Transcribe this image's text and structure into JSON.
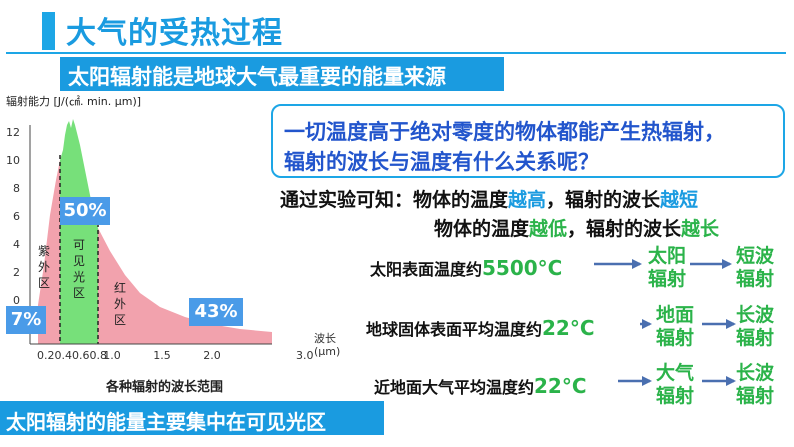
{
  "header": {
    "title": "大气的受热过程",
    "subtitle": "太阳辐射能是地球大气最重要的能量来源"
  },
  "chart": {
    "y_axis_label": "辐射能力 [J/(㎠. min. μm)]",
    "y_ticks": [
      "12",
      "10",
      "8",
      "6",
      "4",
      "2",
      "0"
    ],
    "x_ticks_left": "0.20.40.60.8",
    "x_ticks": [
      "1.0",
      "1.5",
      "2.0",
      "3.0"
    ],
    "x_unit_line1": "波长",
    "x_unit_line2": "(μm)",
    "x_title": "各种辐射的波长范围",
    "band_uv": [
      "紫",
      "外",
      "区"
    ],
    "band_visible": [
      "可",
      "见",
      "光",
      "区"
    ],
    "band_ir": [
      "红",
      "外",
      "区"
    ],
    "pct_uv": "7%",
    "pct_visible": "50%",
    "pct_ir": "43%"
  },
  "question": {
    "line1": "一切温度高于绝对零度的物体都能产生热辐射，",
    "line2": "辐射的波长与温度有什么关系呢？"
  },
  "conclusion": {
    "line1_prefix": "通过实验可知：物体的温度",
    "line1_hi": "越高",
    "line1_mid": "，辐射的波长",
    "line1_short": "越短",
    "line2_prefix": "物体的温度",
    "line2_lo": "越低",
    "line2_mid": "，辐射的波长",
    "line2_long": "越长"
  },
  "rows": [
    {
      "label": "太阳表面温度约",
      "temp": "5500°C",
      "body": [
        "太阳",
        "辐射"
      ],
      "wave": [
        "短波",
        "辐射"
      ]
    },
    {
      "label": "地球固体表面平均温度约",
      "temp": "22°C",
      "body": [
        "地面",
        "辐射"
      ],
      "wave": [
        "长波",
        "辐射"
      ]
    },
    {
      "label": "近地面大气平均温度约",
      "temp": "22°C",
      "body": [
        "大气",
        "辐射"
      ],
      "wave": [
        "长波",
        "辐射"
      ]
    }
  ],
  "footer": {
    "banner": "太阳辐射的能量主要集中在可见光区"
  },
  "colors": {
    "brand_blue": "#1a9be0",
    "green": "#2bb34a",
    "arrow": "#4a6fb0",
    "visible_band": "#77e07a",
    "uv_band": "#f2a2ad",
    "ir_band": "#f2a2ad",
    "pct_box": "#4a9be8"
  }
}
